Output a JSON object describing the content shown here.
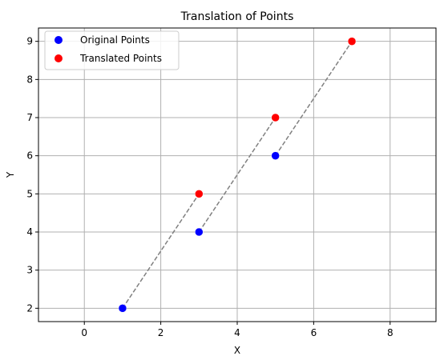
{
  "chart_data": {
    "type": "scatter",
    "title": "Translation of Points",
    "xlabel": "X",
    "ylabel": "Y",
    "xlim": [
      -1.2,
      9.2
    ],
    "ylim": [
      1.65,
      9.35
    ],
    "xticks": [
      0,
      2,
      4,
      6,
      8
    ],
    "yticks": [
      2,
      3,
      4,
      5,
      6,
      7,
      8,
      9
    ],
    "grid": true,
    "legend_position": "top-left",
    "series": [
      {
        "name": "Original Points",
        "color": "#0000ff",
        "points": [
          [
            1,
            2
          ],
          [
            3,
            4
          ],
          [
            5,
            6
          ]
        ]
      },
      {
        "name": "Translated Points",
        "color": "#ff0000",
        "points": [
          [
            3,
            5
          ],
          [
            5,
            7
          ],
          [
            7,
            9
          ]
        ]
      }
    ],
    "connectors": [
      {
        "from": [
          1,
          2
        ],
        "to": [
          3,
          5
        ]
      },
      {
        "from": [
          3,
          4
        ],
        "to": [
          5,
          7
        ]
      },
      {
        "from": [
          5,
          6
        ],
        "to": [
          7,
          9
        ]
      }
    ],
    "connector_color": "#808080"
  }
}
